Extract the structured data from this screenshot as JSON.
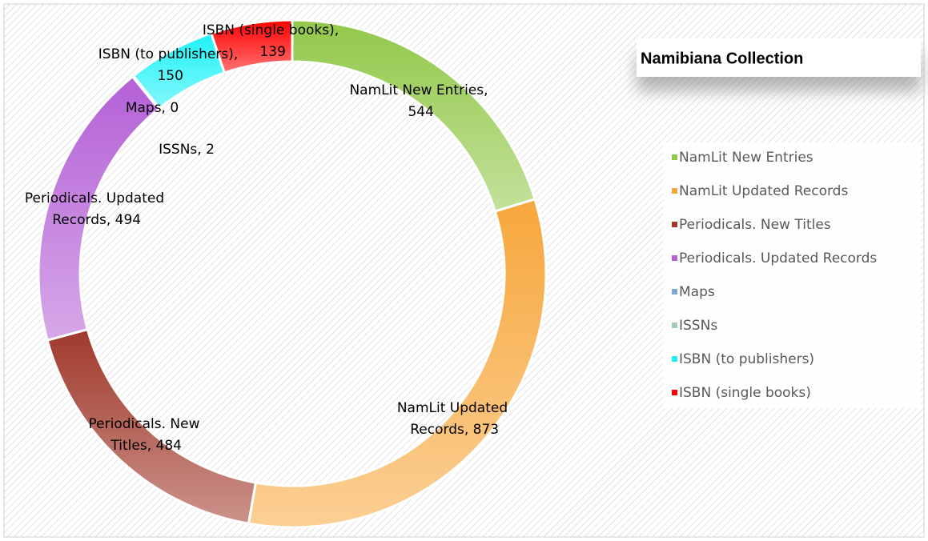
{
  "chart_data": {
    "type": "donut",
    "title": "Namibiana Collection",
    "categories": [
      "NamLit New Entries",
      "NamLit Updated Records",
      "Periodicals. New Titles",
      "Periodicals. Updated Records",
      "Maps",
      "ISSNs",
      "ISBN (to publishers)",
      "ISBN (single books)"
    ],
    "values": [
      544,
      873,
      484,
      494,
      0,
      2,
      150,
      139
    ],
    "value_labels": [
      "NamLit New Entries, 544",
      "NamLit Updated Records, 873",
      "Periodicals. New Titles, 484",
      "Periodicals. Updated Records, 494",
      "Maps, 0",
      "ISSNs, 2",
      "ISBN (to publishers), 150",
      "ISBN (single books), 139"
    ],
    "colors": [
      "#92c84a",
      "#f7a73c",
      "#a0392b",
      "#b460d6",
      "#7fa7d1",
      "#9fcfb0",
      "#1ff2f7",
      "#ff0000"
    ],
    "legend": "right"
  }
}
